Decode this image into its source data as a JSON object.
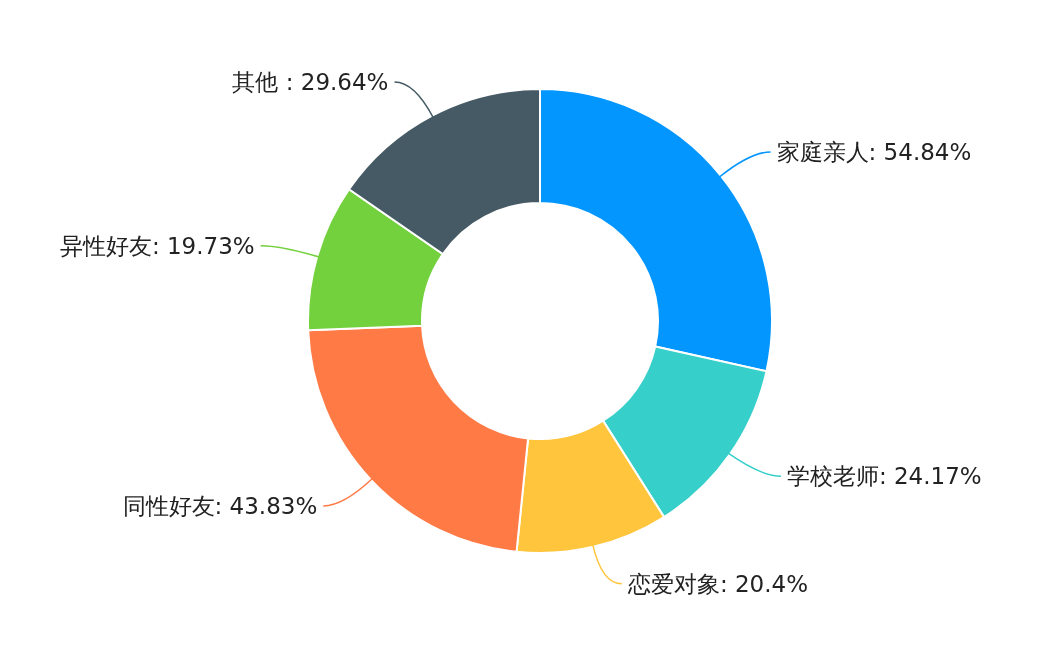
{
  "chart_data": {
    "type": "donut",
    "categories": [
      "家庭亲人",
      "学校老师",
      "恋爱对象",
      "同性好友",
      "异性好友",
      "其他 "
    ],
    "values": [
      54.84,
      24.17,
      20.4,
      43.83,
      19.73,
      29.64
    ],
    "value_labels": [
      "54.84%",
      "24.17%",
      "20.4%",
      "43.83%",
      "19.73%",
      "29.64%"
    ],
    "colors": [
      "#0396ff",
      "#36cfc9",
      "#ffc53d",
      "#ff7a45",
      "#73d13d",
      "#455a64"
    ]
  }
}
